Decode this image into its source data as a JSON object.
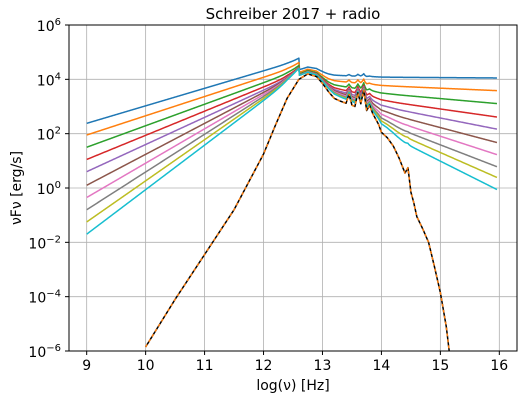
{
  "chart_data": {
    "type": "line",
    "title": "Schreiber 2017 + radio",
    "xlabel": "log(ν) [Hz]",
    "ylabel": "νFν [erg/s]",
    "xlim": [
      8.7,
      16.3
    ],
    "ylim_log10": [
      -6,
      6
    ],
    "yscale": "log",
    "grid": true,
    "xticks": [
      9,
      10,
      11,
      12,
      13,
      14,
      15,
      16
    ],
    "yticks_exp": [
      -6,
      -4,
      -2,
      0,
      2,
      4,
      6
    ],
    "x_tick_labels": [
      "9",
      "10",
      "11",
      "12",
      "13",
      "14",
      "15",
      "16"
    ],
    "y_tick_labels": [
      "10",
      "10",
      "10",
      "10",
      "10",
      "10",
      "10"
    ],
    "y_tick_exponents": [
      "−6",
      "−4",
      "−2",
      "0",
      "2",
      "4",
      "6"
    ],
    "colors": [
      "#1f77b4",
      "#ff7f0e",
      "#2ca02c",
      "#d62728",
      "#9467bd",
      "#8c564b",
      "#e377c2",
      "#7f7f7f",
      "#bcbd22",
      "#17becf",
      "#000000"
    ],
    "dust_log10": {
      "x": [
        10.0,
        10.5,
        11.0,
        11.5,
        12.0,
        12.2,
        12.4,
        12.6,
        12.75,
        12.9,
        13.0,
        13.1,
        13.2,
        13.3,
        13.4,
        13.45,
        13.5,
        13.55,
        13.6,
        13.65,
        13.7,
        13.75,
        13.8,
        13.85,
        13.9,
        13.95,
        14.0,
        14.1,
        14.2,
        14.3,
        14.4,
        14.45,
        14.5,
        14.55,
        14.6,
        14.7,
        14.8,
        14.9,
        15.0,
        15.1,
        15.15
      ],
      "y": [
        -5.85,
        -4.1,
        -2.45,
        -0.8,
        1.25,
        2.3,
        3.3,
        4.0,
        4.2,
        4.1,
        3.85,
        3.55,
        3.3,
        3.2,
        3.12,
        3.45,
        3.05,
        3.0,
        3.5,
        3.1,
        3.6,
        2.85,
        3.05,
        2.75,
        2.55,
        2.35,
        2.05,
        1.85,
        1.55,
        1.1,
        0.55,
        0.75,
        -0.15,
        -0.55,
        -1.05,
        -1.5,
        -2.0,
        -2.9,
        -3.85,
        -5.1,
        -6.0
      ]
    },
    "series": [
      {
        "color": "#1f77b4",
        "radio_y9": 2.38,
        "peak": 4.7,
        "radio_y16": 4.05
      },
      {
        "color": "#ff7f0e",
        "radio_y9": 1.95,
        "peak": 4.5,
        "radio_y16": 3.58
      },
      {
        "color": "#2ca02c",
        "radio_y9": 1.5,
        "peak": 4.35,
        "radio_y16": 3.1
      },
      {
        "color": "#d62728",
        "radio_y9": 1.05,
        "peak": 4.25,
        "radio_y16": 2.6
      },
      {
        "color": "#9467bd",
        "radio_y9": 0.6,
        "peak": 4.2,
        "radio_y16": 2.15
      },
      {
        "color": "#8c564b",
        "radio_y9": 0.1,
        "peak": 4.2,
        "radio_y16": 1.65
      },
      {
        "color": "#e377c2",
        "radio_y9": -0.35,
        "peak": 4.2,
        "radio_y16": 1.2
      },
      {
        "color": "#7f7f7f",
        "radio_y9": -0.8,
        "peak": 4.2,
        "radio_y16": 0.75
      },
      {
        "color": "#bcbd22",
        "radio_y9": -1.25,
        "peak": 4.2,
        "radio_y16": 0.35
      },
      {
        "color": "#17becf",
        "radio_y9": -1.7,
        "peak": 4.2,
        "radio_y16": -0.1
      }
    ]
  }
}
